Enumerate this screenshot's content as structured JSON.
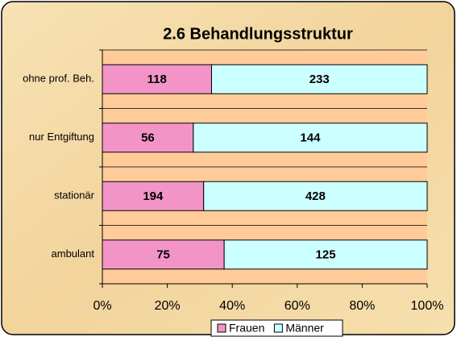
{
  "chart_data": {
    "type": "bar100h",
    "title": "2.6  Behandlungsstruktur",
    "categories": [
      "ohne prof. Beh.",
      "nur Entgiftung",
      "stationär",
      "ambulant"
    ],
    "series": [
      {
        "name": "Frauen",
        "color": "#f394c8",
        "values": [
          118,
          56,
          194,
          75
        ]
      },
      {
        "name": "Männer",
        "color": "#ccffff",
        "values": [
          233,
          144,
          428,
          125
        ]
      }
    ],
    "xlim": [
      0,
      100
    ],
    "xticks": [
      {
        "value": 0,
        "label": "0%"
      },
      {
        "value": 20,
        "label": "20%"
      },
      {
        "value": 40,
        "label": "40%"
      },
      {
        "value": 60,
        "label": "60%"
      },
      {
        "value": 80,
        "label": "80%"
      },
      {
        "value": 100,
        "label": "100%"
      }
    ],
    "legend": "bottom"
  }
}
